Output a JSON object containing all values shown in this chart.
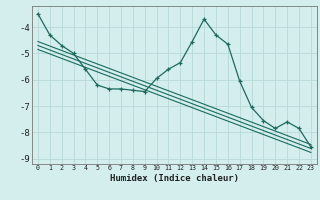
{
  "xlabel": "Humidex (Indice chaleur)",
  "x_data": [
    0,
    1,
    2,
    3,
    4,
    5,
    6,
    7,
    8,
    9,
    10,
    11,
    12,
    13,
    14,
    15,
    16,
    17,
    18,
    19,
    20,
    21,
    22,
    23
  ],
  "y_main": [
    -3.5,
    -4.3,
    -4.7,
    -5.0,
    -5.6,
    -6.2,
    -6.35,
    -6.35,
    -6.4,
    -6.45,
    -5.95,
    -5.6,
    -5.35,
    -4.55,
    -3.7,
    -4.3,
    -4.65,
    -6.05,
    -7.05,
    -7.55,
    -7.85,
    -7.6,
    -7.85,
    -8.55
  ],
  "y_trend1": [
    -4.55,
    -4.72,
    -4.89,
    -5.06,
    -5.23,
    -5.4,
    -5.57,
    -5.74,
    -5.91,
    -6.08,
    -6.25,
    -6.42,
    -6.59,
    -6.76,
    -6.93,
    -7.1,
    -7.27,
    -7.44,
    -7.61,
    -7.78,
    -7.95,
    -8.12,
    -8.29,
    -8.46
  ],
  "y_trend2": [
    -4.7,
    -4.87,
    -5.04,
    -5.21,
    -5.38,
    -5.55,
    -5.72,
    -5.89,
    -6.06,
    -6.23,
    -6.4,
    -6.57,
    -6.74,
    -6.91,
    -7.08,
    -7.25,
    -7.42,
    -7.59,
    -7.76,
    -7.93,
    -8.1,
    -8.27,
    -8.44,
    -8.61
  ],
  "y_trend3": [
    -4.85,
    -5.02,
    -5.19,
    -5.36,
    -5.53,
    -5.7,
    -5.87,
    -6.04,
    -6.21,
    -6.38,
    -6.55,
    -6.72,
    -6.89,
    -7.06,
    -7.23,
    -7.4,
    -7.57,
    -7.74,
    -7.91,
    -8.08,
    -8.25,
    -8.42,
    -8.59,
    -8.76
  ],
  "line_color": "#1a6b5e",
  "bg_color": "#d4eeee",
  "grid_color": "#b8d8d8",
  "ylim": [
    -9.2,
    -3.2
  ],
  "xlim": [
    -0.5,
    23.5
  ],
  "yticks": [
    -9,
    -8,
    -7,
    -6,
    -5,
    -4
  ],
  "xticks": [
    0,
    1,
    2,
    3,
    4,
    5,
    6,
    7,
    8,
    9,
    10,
    11,
    12,
    13,
    14,
    15,
    16,
    17,
    18,
    19,
    20,
    21,
    22,
    23
  ]
}
